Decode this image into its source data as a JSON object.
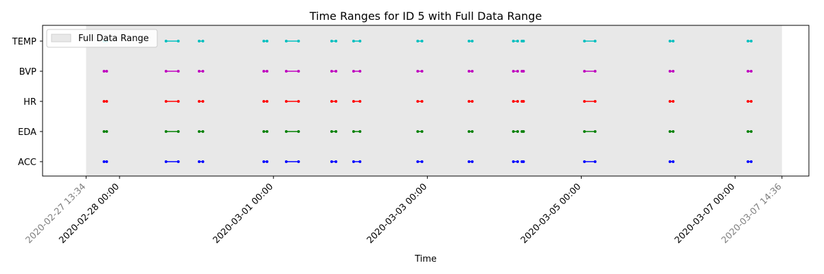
{
  "chart_data": {
    "type": "scatter",
    "title": "Time Ranges for ID 5 with Full Data Range",
    "xlabel": "Time",
    "ylabel": "",
    "categories": [
      "ACC",
      "EDA",
      "HR",
      "BVP",
      "TEMP"
    ],
    "x_range": {
      "start_label": "2020-02-27 13:34",
      "end_label": "2020-03-07 14:36",
      "start": "2020-02-27T13:34",
      "end": "2020-03-07T14:36"
    },
    "xlim": [
      "2020-02-27T00:00",
      "2020-03-07T23:00"
    ],
    "x_ticks": [
      {
        "label": "2020-02-28 00:00",
        "value": "2020-02-28T00:00"
      },
      {
        "label": "2020-03-01 00:00",
        "value": "2020-03-01T00:00"
      },
      {
        "label": "2020-03-03 00:00",
        "value": "2020-03-03T00:00"
      },
      {
        "label": "2020-03-05 00:00",
        "value": "2020-03-05T00:00"
      },
      {
        "label": "2020-03-07 00:00",
        "value": "2020-03-07T00:00"
      }
    ],
    "legend": {
      "label": "Full Data Range",
      "location": "upper-left"
    },
    "shaded_region_color": "#e8e8e8",
    "sessions": [
      [
        "2020-02-27T19:10",
        "2020-02-27T20:00"
      ],
      [
        "2020-02-28T14:30",
        "2020-02-28T18:20"
      ],
      [
        "2020-02-29T00:50",
        "2020-02-29T02:00"
      ],
      [
        "2020-02-29T21:00",
        "2020-02-29T22:00"
      ],
      [
        "2020-03-01T04:00",
        "2020-03-01T07:50"
      ],
      [
        "2020-03-01T18:10",
        "2020-03-01T19:30"
      ],
      [
        "2020-03-02T01:00",
        "2020-03-02T03:00"
      ],
      [
        "2020-03-02T21:00",
        "2020-03-02T22:20"
      ],
      [
        "2020-03-03T13:00",
        "2020-03-03T14:00"
      ],
      [
        "2020-03-04T02:50",
        "2020-03-04T04:10"
      ],
      [
        "2020-03-04T05:30",
        "2020-03-04T06:00"
      ],
      [
        "2020-03-05T01:00",
        "2020-03-05T04:20"
      ],
      [
        "2020-03-06T03:40",
        "2020-03-06T04:40"
      ],
      [
        "2020-03-07T04:00",
        "2020-03-07T05:00"
      ]
    ],
    "series": [
      {
        "name": "ACC",
        "color": "#0000ff"
      },
      {
        "name": "EDA",
        "color": "#008000"
      },
      {
        "name": "HR",
        "color": "#ff0000"
      },
      {
        "name": "BVP",
        "color": "#bf00bf"
      },
      {
        "name": "TEMP",
        "color": "#00bfbf"
      }
    ],
    "grid": false
  }
}
